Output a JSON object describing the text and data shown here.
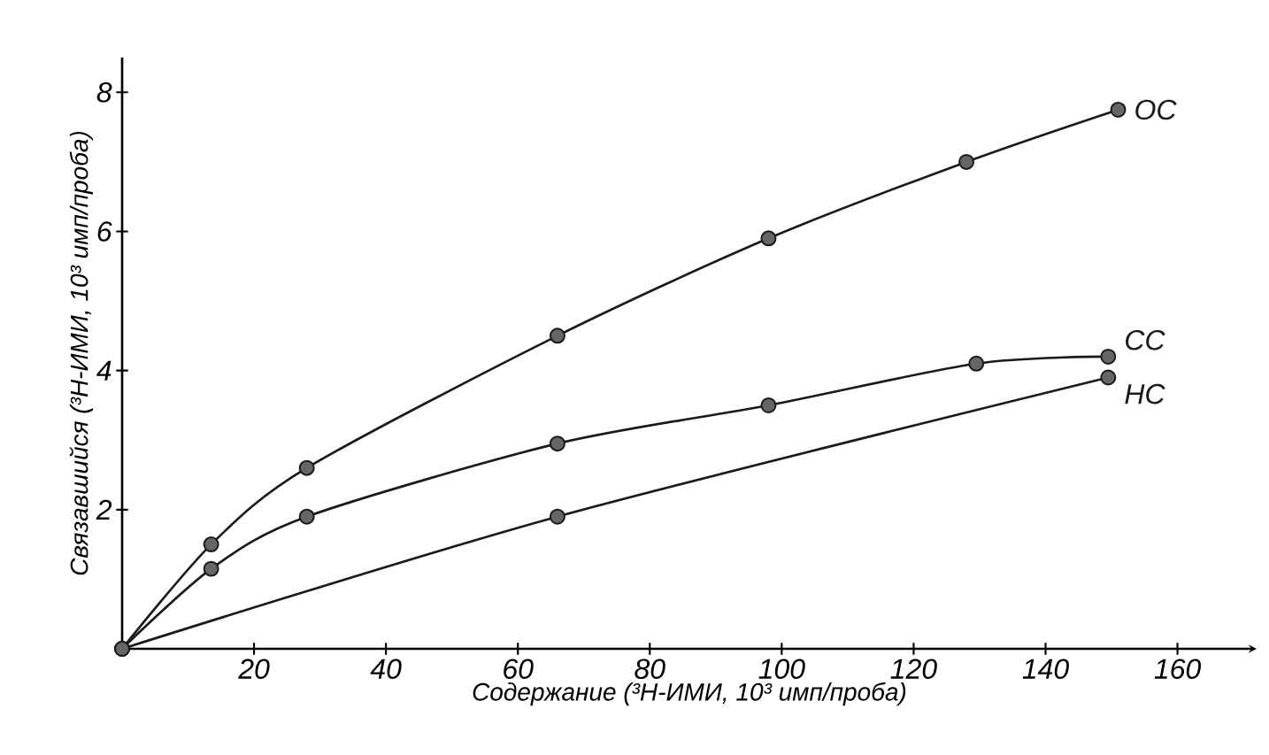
{
  "chart_data": {
    "type": "line",
    "xlabel": "Содержание (³Н-ИМИ, 10³ имп/проба)",
    "ylabel": "Связавшийся (³Н-ИМИ, 10³ имп/проба)",
    "xlim": [
      0,
      172
    ],
    "ylim": [
      0,
      8.5
    ],
    "xticks": [
      20,
      40,
      60,
      80,
      100,
      120,
      140,
      160
    ],
    "yticks": [
      2,
      4,
      6,
      8
    ],
    "marker": "circle",
    "line_style": "solid",
    "series": [
      {
        "name": "ОС",
        "color": "#1a1a1a",
        "x": [
          0,
          13.5,
          28,
          66,
          98,
          128,
          151
        ],
        "values": [
          0,
          1.5,
          2.6,
          4.5,
          5.9,
          7.0,
          7.75
        ]
      },
      {
        "name": "СС",
        "color": "#1a1a1a",
        "x": [
          0,
          13.5,
          28,
          66,
          98,
          129.5,
          149.5
        ],
        "values": [
          0,
          1.15,
          1.9,
          2.95,
          3.5,
          4.1,
          4.2
        ]
      },
      {
        "name": "НС",
        "color": "#1a1a1a",
        "x": [
          0,
          66,
          149.5
        ],
        "values": [
          0,
          1.9,
          3.9
        ]
      }
    ]
  }
}
